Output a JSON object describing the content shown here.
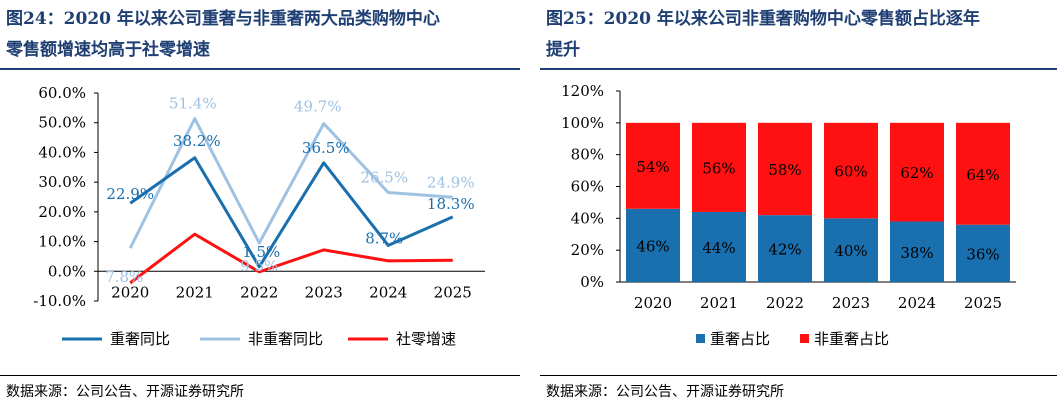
{
  "left": {
    "title": "图24：2020 年以来公司重奢与非重奢两大品类购物中心零售额增速均高于社零增速",
    "title_line1": "图24：2020 年以来公司重奢与非重奢两大品类购物中心",
    "title_line2": "零售额增速均高于社零增速",
    "source": "数据来源：公司公告、开源证券研究所"
  },
  "right": {
    "title": "图25：2020 年以来公司非重奢购物中心零售额占比逐年提升",
    "title_line1": "图25：2020 年以来公司非重奢购物中心零售额占比逐年",
    "title_line2": "提升",
    "source": "数据来源：公司公告、开源证券研究所"
  },
  "colors": {
    "dark_blue": "#1a6faf",
    "light_blue": "#9fc2e2",
    "red": "#ff1111",
    "title_blue": "#1f3f73"
  },
  "chart_data": [
    {
      "type": "line",
      "categories": [
        "2020",
        "2021",
        "2022",
        "2023",
        "2024",
        "2025"
      ],
      "ylim": [
        -10,
        60
      ],
      "yticks": [
        "60.0%",
        "50.0%",
        "40.0%",
        "30.0%",
        "20.0%",
        "10.0%",
        "0.0%",
        "-10.0%"
      ],
      "series": [
        {
          "name": "重奢同比",
          "color": "#1a6faf",
          "values": [
            22.9,
            38.2,
            1.5,
            36.5,
            8.7,
            18.3
          ],
          "labels": [
            "22.9%",
            "38.2%",
            "1.5%",
            "36.5%",
            "8.7%",
            "18.3%"
          ]
        },
        {
          "name": "非重奢同比",
          "color": "#9fc2e2",
          "values": [
            7.8,
            51.4,
            9.5,
            49.7,
            26.5,
            24.9
          ],
          "labels": [
            "7.8%",
            "51.4%",
            "9.5%",
            "49.7%",
            "26.5%",
            "24.9%"
          ]
        },
        {
          "name": "社零增速",
          "color": "#ff1111",
          "values": [
            -3.9,
            12.5,
            -0.2,
            7.2,
            3.5,
            3.7
          ],
          "labels": []
        }
      ],
      "legend_position": "bottom"
    },
    {
      "type": "bar",
      "stacked": true,
      "categories": [
        "2020",
        "2021",
        "2022",
        "2023",
        "2024",
        "2025"
      ],
      "ylim": [
        0,
        120
      ],
      "yticks": [
        "120%",
        "100%",
        "80%",
        "60%",
        "40%",
        "20%",
        "0%"
      ],
      "series": [
        {
          "name": "重奢占比",
          "color": "#1a6faf",
          "values": [
            46,
            44,
            42,
            40,
            38,
            36
          ],
          "labels": [
            "46%",
            "44%",
            "42%",
            "40%",
            "38%",
            "36%"
          ]
        },
        {
          "name": "非重奢占比",
          "color": "#ff1111",
          "values": [
            54,
            56,
            58,
            60,
            62,
            64
          ],
          "labels": [
            "54%",
            "56%",
            "58%",
            "60%",
            "62%",
            "64%"
          ]
        }
      ],
      "legend_position": "bottom"
    }
  ]
}
